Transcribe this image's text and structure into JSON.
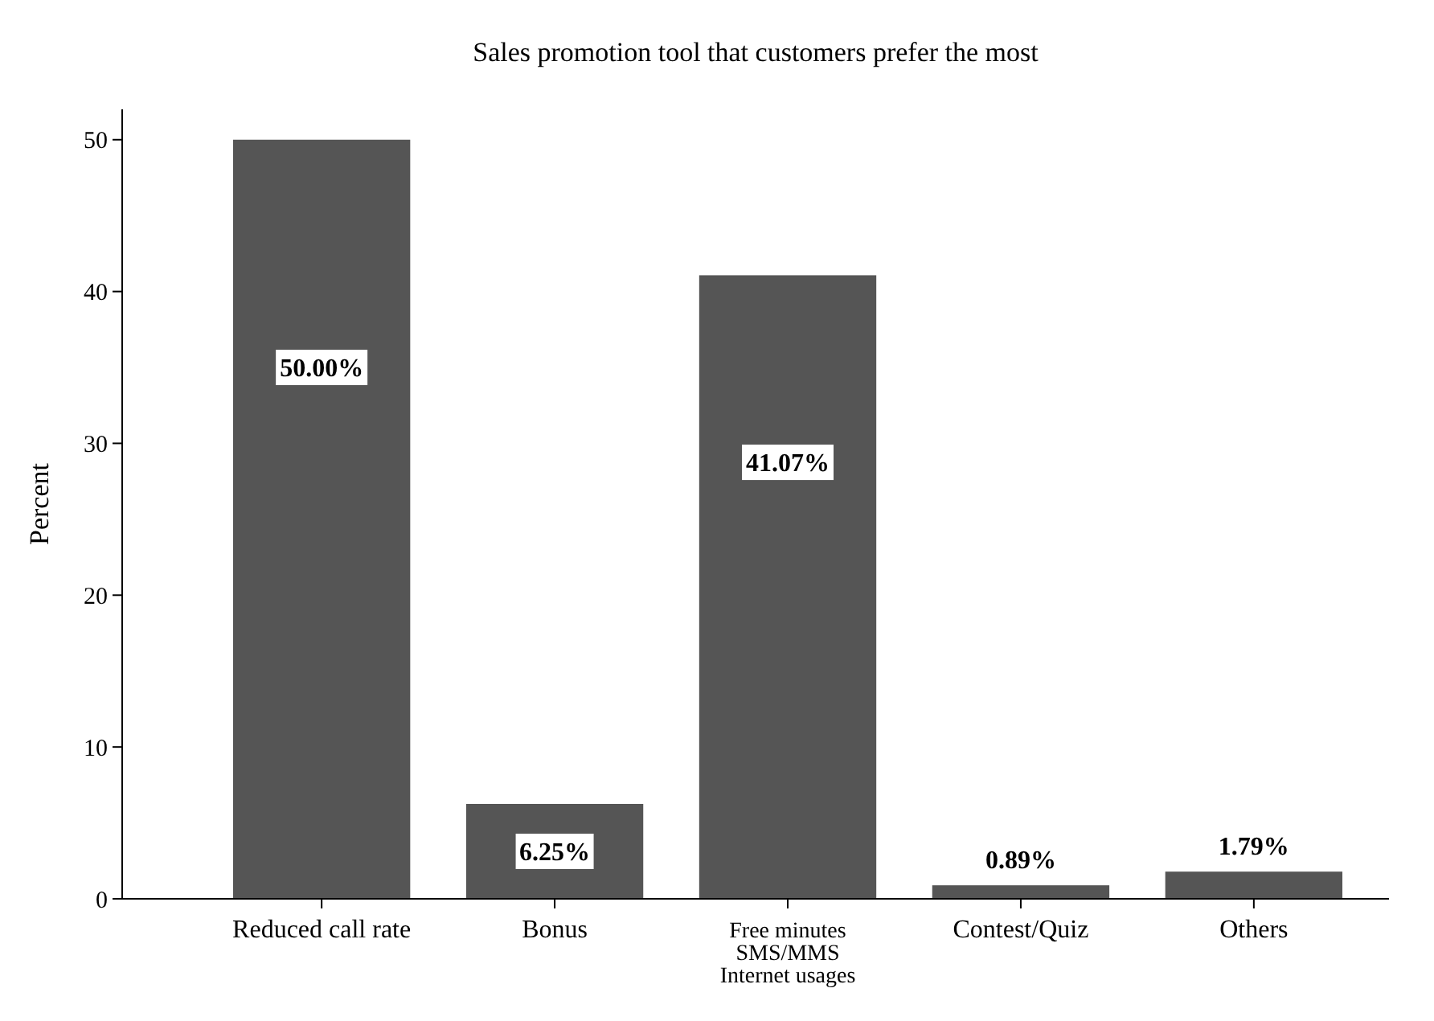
{
  "chart_data": {
    "type": "bar",
    "title": "Sales promotion tool that customers prefer the most",
    "ylabel": "Percent",
    "categories": [
      "Reduced call rate",
      "Bonus",
      "Free minutes\nSMS/MMS\nInternet usages",
      "Contest/Quiz",
      "Others"
    ],
    "values": [
      50,
      6.25,
      41.07,
      0.89,
      1.79
    ],
    "value_labels": [
      "50.00%",
      "6.25%",
      "41.07%",
      "0.89%",
      "1.79%"
    ],
    "color": "#555555",
    "ylim": [
      0,
      52
    ],
    "yticks": [
      0,
      10,
      20,
      30,
      40,
      50
    ],
    "grid": false
  }
}
